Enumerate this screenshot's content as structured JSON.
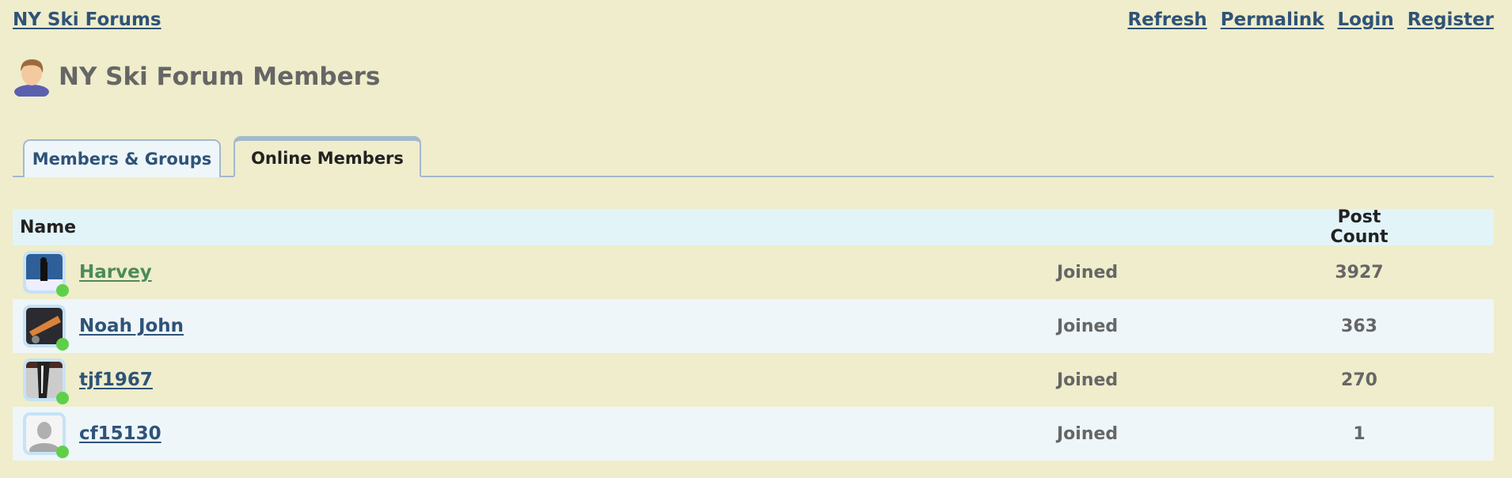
{
  "header": {
    "site_link": "NY Ski Forums",
    "links": [
      "Refresh",
      "Permalink",
      "Login",
      "Register"
    ],
    "title": "NY Ski Forum Members",
    "title_icon": "user-icon"
  },
  "tabs": [
    {
      "label": "Members & Groups",
      "active": false
    },
    {
      "label": "Online Members",
      "active": true
    }
  ],
  "table": {
    "columns": [
      "Name",
      "Post Count"
    ],
    "rows": [
      {
        "name": "Harvey",
        "status": "Joined",
        "posts": "3927",
        "online": true
      },
      {
        "name": "Noah John",
        "status": "Joined",
        "posts": "363",
        "online": true
      },
      {
        "name": "tjf1967",
        "status": "Joined",
        "posts": "270",
        "online": true
      },
      {
        "name": "cf15130",
        "status": "Joined",
        "posts": "1",
        "online": true
      }
    ]
  },
  "colors": {
    "background": "#efedcb",
    "link": "#2f5378",
    "highlight_link": "#4d8a5a",
    "online": "#5fcf4a",
    "header_row": "#e2f4f8"
  }
}
